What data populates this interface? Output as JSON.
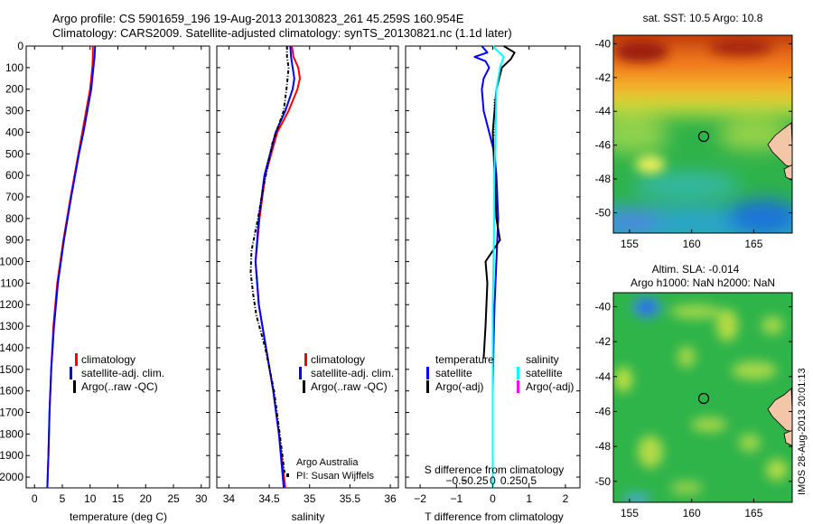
{
  "header": {
    "line1": "Argo profile: CS 5901659_196 19-Aug-2013 20130823_261 45.259S 160.954E",
    "line2": "Climatology: CARS2009. Satellite-adjusted climatology: synTS_20130821.nc (1.1d later)"
  },
  "colors": {
    "clim": "#ff0000",
    "sat": "#0000ff",
    "argo": "#000000",
    "sat_sal": "#00ffff",
    "argo_sal": "#ff00ff"
  },
  "depth_ticks": [
    0,
    100,
    200,
    300,
    400,
    500,
    600,
    700,
    800,
    900,
    1000,
    1100,
    1200,
    1300,
    1400,
    1500,
    1600,
    1700,
    1800,
    1900,
    2000
  ],
  "chart_data": [
    {
      "type": "line",
      "id": "temperature",
      "xlabel": "temperature (deg C)",
      "xlim": [
        -1.5,
        31.5
      ],
      "ylim": [
        2050,
        0
      ],
      "xticks": [
        0,
        5,
        10,
        15,
        20,
        25,
        30
      ],
      "xticklabels": [
        "0",
        "5",
        "10",
        "15",
        "20",
        "25",
        "30"
      ],
      "legend": [
        "climatology",
        "satellite-adj. clim.",
        "Argo(..raw -QC)"
      ],
      "series": [
        {
          "name": "climatology",
          "color": "#ff0000",
          "depth": [
            0,
            50,
            100,
            200,
            300,
            400,
            500,
            700,
            900,
            1100,
            1300,
            1500,
            1700,
            1900,
            2050
          ],
          "values": [
            10.5,
            10.5,
            10.4,
            10.0,
            9.3,
            8.6,
            7.9,
            6.5,
            5.2,
            4.1,
            3.4,
            3.0,
            2.7,
            2.5,
            2.3
          ]
        },
        {
          "name": "satellite-adj. clim.",
          "color": "#0000ff",
          "depth": [
            0,
            50,
            100,
            200,
            300,
            400,
            500,
            700,
            900,
            1100,
            1300,
            1500,
            1700,
            1900,
            2050
          ],
          "values": [
            10.9,
            10.8,
            10.6,
            10.2,
            9.5,
            8.8,
            8.0,
            6.6,
            5.3,
            4.2,
            3.5,
            3.0,
            2.7,
            2.5,
            2.3
          ]
        }
      ]
    },
    {
      "type": "line",
      "id": "salinity",
      "xlabel": "salinity",
      "xlim": [
        33.85,
        36.1
      ],
      "ylim": [
        2050,
        0
      ],
      "xticks": [
        34,
        34.5,
        35,
        35.5,
        36
      ],
      "xticklabels": [
        "34",
        "34.5",
        "35",
        "35.5",
        "36"
      ],
      "legend": [
        "climatology",
        "satellite-adj. clim.",
        "Argo(..raw -QC)"
      ],
      "annotation": [
        "Argo Australia",
        "PI: Susan Wijffels"
      ],
      "series": [
        {
          "name": "climatology",
          "color": "#ff0000",
          "depth": [
            0,
            50,
            100,
            150,
            200,
            300,
            400,
            600,
            800,
            1000,
            1200,
            1400,
            1600,
            1800,
            2050
          ],
          "values": [
            34.78,
            34.8,
            34.86,
            34.88,
            34.85,
            34.74,
            34.6,
            34.45,
            34.38,
            34.33,
            34.37,
            34.46,
            34.55,
            34.62,
            34.7
          ]
        },
        {
          "name": "satellite-adj. clim.",
          "color": "#0000ff",
          "depth": [
            0,
            50,
            100,
            150,
            200,
            300,
            400,
            600,
            800,
            1000,
            1200,
            1400,
            1600,
            1800,
            2050
          ],
          "values": [
            34.76,
            34.77,
            34.79,
            34.81,
            34.79,
            34.7,
            34.58,
            34.44,
            34.37,
            34.33,
            34.37,
            34.46,
            34.55,
            34.62,
            34.68
          ]
        },
        {
          "name": "Argo(..raw -QC)",
          "color": "#000000",
          "dash": true,
          "depth": [
            0,
            50,
            100,
            180,
            300,
            450,
            650,
            800,
            950,
            1050,
            1150,
            1250,
            1400,
            1600,
            1800,
            1980
          ],
          "values": [
            34.72,
            34.72,
            34.74,
            34.72,
            34.68,
            34.54,
            34.43,
            34.36,
            34.28,
            34.27,
            34.3,
            34.34,
            34.45,
            34.56,
            34.63,
            34.69
          ]
        }
      ]
    },
    {
      "type": "line",
      "id": "difference",
      "xlabel": "T difference from climatology",
      "xlabel2": "S difference from climatology",
      "xlim": [
        -2.4,
        2.4
      ],
      "ylim": [
        2050,
        0
      ],
      "xticks": [
        -2,
        -1,
        0,
        1,
        2
      ],
      "xticklabels": [
        "−2",
        "−1",
        "0",
        "1",
        "2"
      ],
      "sticks": [
        -0.5,
        -0.25,
        0,
        0.25,
        0.5
      ],
      "sticklabels": [
        "−0.5",
        "−0.25",
        "0",
        "0.25",
        "0.5"
      ],
      "legend": {
        "temperature": [
          "temperature",
          "satellite",
          "Argo(-adj)"
        ],
        "salinity": [
          "salinity",
          "satellite",
          "Argo(-adj)"
        ]
      },
      "series": [
        {
          "name": "satellite",
          "color": "#0000ff",
          "depth": [
            0,
            30,
            50,
            70,
            100,
            150,
            200,
            300,
            400,
            500,
            600,
            800,
            1000,
            1200,
            1400,
            1600,
            1800,
            1900
          ],
          "values": [
            -0.3,
            -0.15,
            -0.5,
            -0.2,
            -0.1,
            -0.25,
            -0.3,
            -0.25,
            -0.1,
            0.05,
            0.1,
            0.15,
            0.1,
            0.05,
            0.02,
            0.0,
            0.0,
            0.0
          ]
        },
        {
          "name": "Argo(-adj)",
          "color": "#000000",
          "depth": [
            0,
            30,
            60,
            100,
            200,
            400,
            600,
            800,
            900,
            1000,
            1100,
            1300,
            1450
          ],
          "values": [
            0.3,
            0.6,
            0.5,
            0.25,
            0.1,
            0.0,
            0.05,
            0.1,
            0.2,
            -0.2,
            -0.15,
            -0.2,
            -0.25
          ]
        },
        {
          "name": "satellite salinity",
          "color": "#00ffff",
          "depth": [
            0,
            50,
            100,
            200,
            400,
            600,
            800,
            1000,
            1200,
            1600,
            2050
          ],
          "values": [
            0.0,
            0.15,
            0.1,
            0.05,
            0.04,
            0.02,
            0.02,
            0.01,
            0.0,
            0.0,
            0.0
          ]
        }
      ]
    }
  ],
  "maps": {
    "top": {
      "title": "sat. SST: 10.5 Argo: 10.8",
      "yticks": [
        "-40",
        "-42",
        "-44",
        "-46",
        "-48",
        "-50"
      ],
      "xticks": [
        "155",
        "160",
        "165"
      ]
    },
    "bottom": {
      "title1": "Altim. SLA: -0.014",
      "title2": "Argo h1000: NaN h2000: NaN",
      "yticks": [
        "-40",
        "-42",
        "-44",
        "-46",
        "-48",
        "-50"
      ],
      "xticks": [
        "155",
        "160",
        "165"
      ]
    },
    "side_text": "IMOS 28-Aug-2013 20:01:13"
  }
}
